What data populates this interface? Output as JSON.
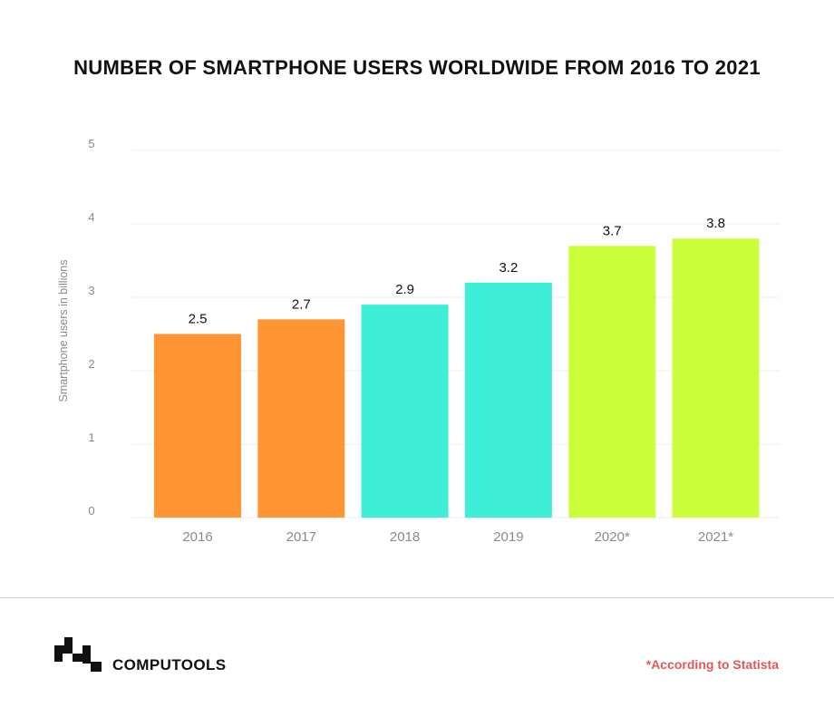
{
  "chart_data": {
    "type": "bar",
    "title": "NUMBER OF SMARTPHONE USERS WORLDWIDE FROM 2016 TO 2021",
    "ylabel": "Smartphone users in billions",
    "xlabel": "",
    "categories": [
      "2016",
      "2017",
      "2018",
      "2019",
      "2020*",
      "2021*"
    ],
    "values": [
      2.5,
      2.7,
      2.9,
      3.2,
      3.7,
      3.8
    ],
    "data_labels": [
      "2.5",
      "2.7",
      "2.9",
      "3.2",
      "3.7",
      "3.8"
    ],
    "colors": [
      "#ff9533",
      "#ff9533",
      "#3feed6",
      "#3feed6",
      "#ccff3b",
      "#ccff3b"
    ],
    "ylim": [
      0,
      5
    ],
    "yticks": [
      "0",
      "1",
      "2",
      "3",
      "4",
      "5"
    ],
    "grid": true,
    "legend": "none"
  },
  "footer": {
    "brand": "COMPUTOOLS",
    "source_note": "*According to Statista"
  }
}
